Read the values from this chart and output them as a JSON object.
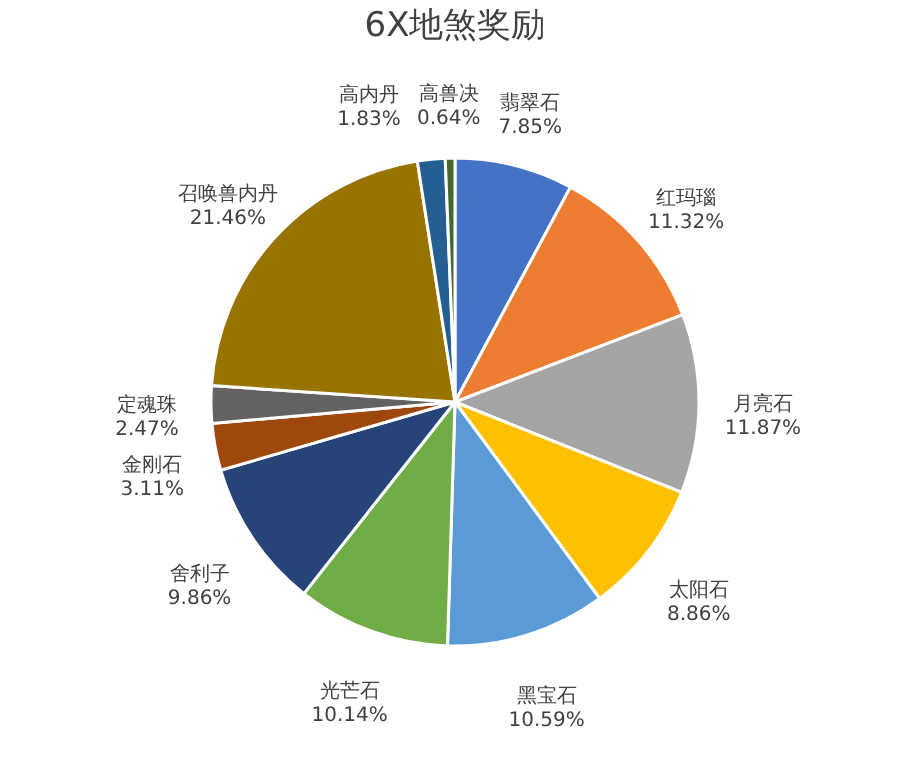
{
  "chart_data": {
    "type": "pie",
    "title": "6X地煞奖励",
    "categories": [
      "翡翠石",
      "红玛瑙",
      "月亮石",
      "太阳石",
      "黑宝石",
      "光芒石",
      "舍利子",
      "金刚石",
      "定魂珠",
      "召唤兽内丹",
      "高内丹",
      "高兽决"
    ],
    "values": [
      7.85,
      11.32,
      11.87,
      8.86,
      10.59,
      10.14,
      9.86,
      3.11,
      2.47,
      21.46,
      1.83,
      0.64
    ],
    "value_labels": [
      "7.85%",
      "11.32%",
      "11.87%",
      "8.86%",
      "10.59%",
      "10.14%",
      "9.86%",
      "3.11%",
      "2.47%",
      "21.46%",
      "1.83%",
      "0.64%"
    ],
    "colors": [
      "#4472c4",
      "#ed7d31",
      "#a5a5a5",
      "#ffc000",
      "#5b9bd5",
      "#70ad47",
      "#264478",
      "#9e480e",
      "#636363",
      "#997300",
      "#255e91",
      "#43682b"
    ]
  }
}
